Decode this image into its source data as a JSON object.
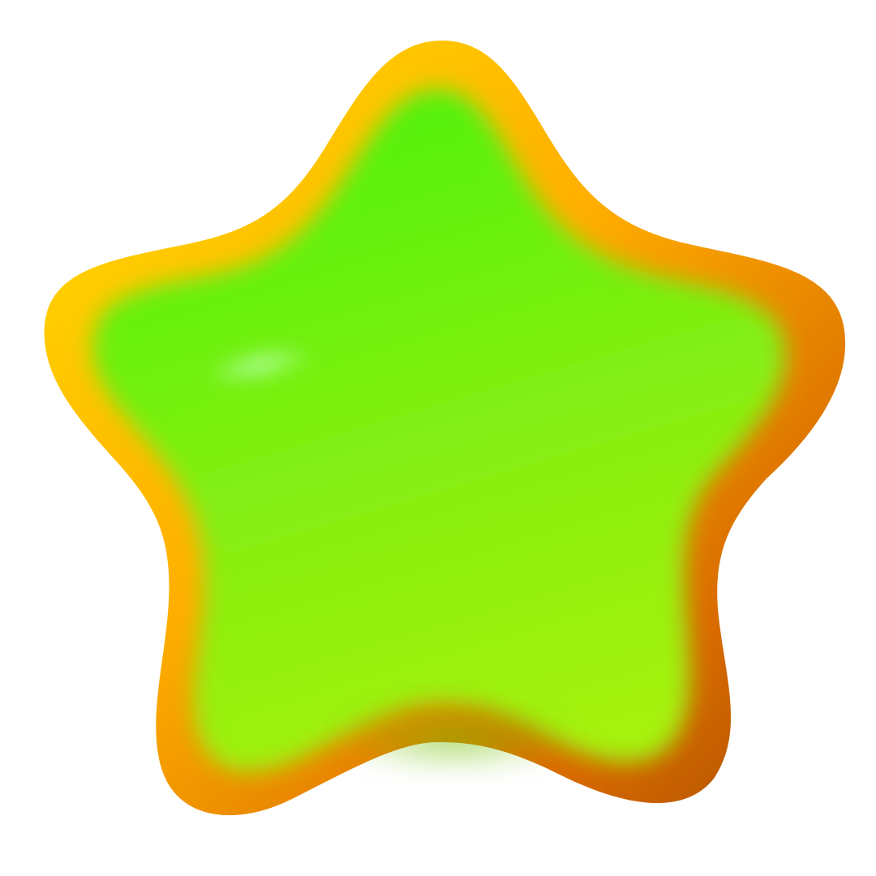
{
  "image": {
    "subject": "star-icon",
    "background_color": "#ffffff",
    "colors": {
      "rim_light": "#ffe000",
      "rim_mid": "#ffae00",
      "rim_dark": "#d86a00",
      "rim_shadow": "#a84d00",
      "fill_top": "#4ff20f",
      "fill_mid": "#86ef12",
      "fill_bottom": "#a6f20e",
      "fill_shadow": "#6fbf0a",
      "highlight": "#b8ffb0"
    }
  }
}
